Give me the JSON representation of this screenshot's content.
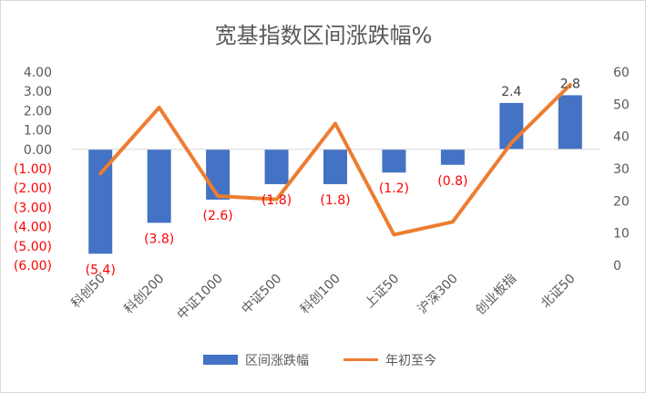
{
  "chart_data": {
    "type": "bar",
    "title": "宽基指数区间涨跌幅%",
    "categories": [
      "科创50",
      "科创200",
      "中证1000",
      "中证500",
      "科创100",
      "上证50",
      "沪深300",
      "创业板指",
      "北证50"
    ],
    "series": [
      {
        "name": "区间涨跌幅",
        "type": "bar",
        "axis": "left",
        "color": "#4472c4",
        "values": [
          -5.4,
          -3.8,
          -2.6,
          -1.8,
          -1.8,
          -1.2,
          -0.8,
          2.4,
          2.8
        ],
        "data_labels": [
          "(5.4)",
          "(3.8)",
          "(2.6)",
          "(1.8)",
          "(1.8)",
          "(1.2)",
          "(0.8)",
          "2.4",
          "2.8"
        ]
      },
      {
        "name": "年初至今",
        "type": "line",
        "axis": "right",
        "color": "#ed7d31",
        "values": [
          28.5,
          49,
          21.5,
          20.5,
          44,
          9.5,
          13.5,
          38,
          56
        ]
      }
    ],
    "y_left": {
      "min": -6,
      "max": 4,
      "step": 1,
      "tick_labels": [
        "4.00",
        "3.00",
        "2.00",
        "1.00",
        "0.00",
        "(1.00)",
        "(2.00)",
        "(3.00)",
        "(4.00)",
        "(5.00)",
        "(6.00)"
      ]
    },
    "y_right": {
      "min": 0,
      "max": 60,
      "step": 10,
      "tick_labels": [
        "60",
        "50",
        "40",
        "30",
        "20",
        "10",
        "0"
      ]
    },
    "negative_label_color": "#ff0000",
    "text_color": "#595959",
    "grid": false,
    "legend_position": "bottom"
  }
}
